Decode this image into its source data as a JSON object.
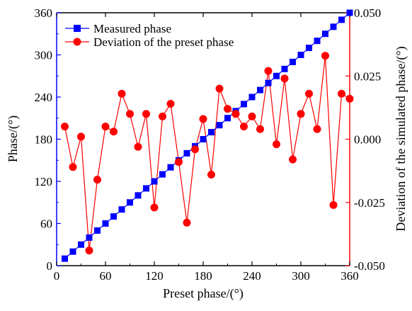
{
  "chart_data": {
    "type": "line",
    "title": "",
    "xlabel": "Preset phase/(°)",
    "ylabel_left": "Phase/(°)",
    "ylabel_right": "Deviation of the simulated phase/(°)",
    "xlim": [
      0,
      360
    ],
    "ylim_left": [
      0,
      360
    ],
    "ylim_right": [
      -0.05,
      0.05
    ],
    "xticks": [
      0,
      60,
      120,
      180,
      240,
      300,
      360
    ],
    "xtick_labels": [
      "0",
      "60",
      "120",
      "180",
      "240",
      "300",
      "360"
    ],
    "yticks_left": [
      0,
      60,
      120,
      180,
      240,
      300,
      360
    ],
    "ytick_labels_left": [
      "0",
      "60",
      "120",
      "180",
      "240",
      "300",
      "360"
    ],
    "yticks_right": [
      -0.05,
      -0.025,
      0,
      0.025,
      0.05
    ],
    "ytick_labels_right": [
      "-0.050",
      "-0.025",
      "0.000",
      "0.025",
      "0.050"
    ],
    "grid": false,
    "legend_position": "top-left",
    "x": [
      10,
      20,
      30,
      40,
      50,
      60,
      70,
      80,
      90,
      100,
      110,
      120,
      130,
      140,
      150,
      160,
      170,
      180,
      190,
      200,
      210,
      220,
      230,
      240,
      250,
      260,
      270,
      280,
      290,
      300,
      310,
      320,
      330,
      340,
      350,
      360
    ],
    "series": [
      {
        "name": "Measured phase",
        "axis": "left",
        "color": "#0000ff",
        "marker": "square",
        "values": [
          10,
          20,
          30,
          40,
          50,
          60,
          70,
          80,
          90,
          100,
          110,
          120,
          130,
          140,
          150,
          160,
          170,
          180,
          190,
          200,
          210,
          220,
          230,
          240,
          250,
          260,
          270,
          280,
          290,
          300,
          310,
          320,
          330,
          340,
          350,
          360
        ]
      },
      {
        "name": "Deviation of the preset phase",
        "axis": "right",
        "color": "#ff0000",
        "marker": "circle",
        "values": [
          0.005,
          -0.011,
          0.001,
          -0.044,
          -0.016,
          0.005,
          0.003,
          0.018,
          0.01,
          -0.003,
          0.01,
          -0.027,
          0.009,
          0.014,
          -0.009,
          -0.033,
          -0.004,
          0.008,
          -0.014,
          0.02,
          0.012,
          0.01,
          0.005,
          0.009,
          0.004,
          0.027,
          -0.002,
          0.024,
          -0.008,
          0.01,
          0.018,
          0.004,
          0.033,
          -0.026,
          0.018,
          0.016
        ]
      }
    ]
  }
}
